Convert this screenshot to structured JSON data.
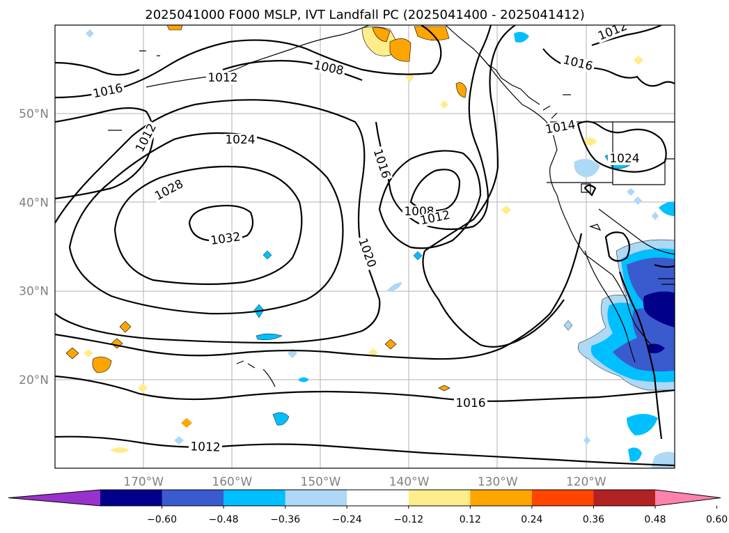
{
  "title": "2025041000 F000 MSLP, IVT Landfall PC (2025041400 - 2025041412)",
  "chart_data": {
    "type": "contour-map",
    "title": "2025041000 F000 MSLP, IVT Landfall PC (2025041400 - 2025041412)",
    "x_ticks": [
      "170°W",
      "160°W",
      "150°W",
      "140°W",
      "130°W",
      "120°W"
    ],
    "y_ticks": [
      "50°N",
      "40°N",
      "30°N",
      "20°N"
    ],
    "lon_range": [
      -180,
      -110
    ],
    "lat_range": [
      10,
      60
    ],
    "grid": true,
    "mslp_contour_labels": [
      "1008",
      "1012",
      "1016",
      "1012",
      "1024",
      "1028",
      "1032",
      "1016",
      "1008",
      "1012",
      "1020",
      "1016",
      "1012",
      "1012",
      "1016",
      "1014",
      "1024"
    ],
    "colorbar": {
      "ticks": [
        "−0.60",
        "−0.48",
        "−0.36",
        "−0.24",
        "−0.12",
        "0.12",
        "0.24",
        "0.36",
        "0.48",
        "0.60"
      ],
      "colors": [
        "#9932cc",
        "#00008b",
        "#3a5bcd",
        "#00bfff",
        "#add8f6",
        "#ffffff",
        "#ffec8b",
        "#ffa500",
        "#ff4500",
        "#b22222",
        "#ff82ab"
      ],
      "extend": "both",
      "location": "bottom"
    }
  }
}
